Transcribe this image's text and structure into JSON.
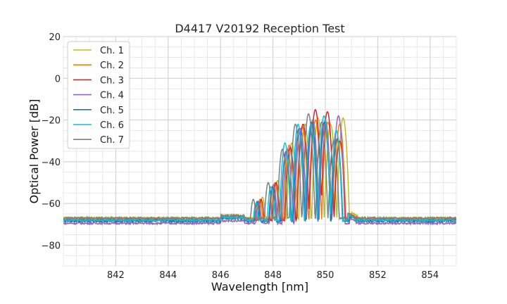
{
  "chart_data": {
    "type": "line",
    "title": "D4417 V20192 Reception Test",
    "xlabel": "Wavelength [nm]",
    "ylabel": "Optical Power [dB]",
    "xlim": [
      840,
      855
    ],
    "ylim": [
      -90,
      20
    ],
    "xticks": [
      842,
      844,
      846,
      848,
      850,
      852,
      854
    ],
    "xtick_labels": [
      "842",
      "844",
      "846",
      "848",
      "850",
      "852",
      "854"
    ],
    "yticks": [
      -80,
      -60,
      -40,
      -20,
      0,
      20
    ],
    "ytick_labels": [
      "−80",
      "−60",
      "−40",
      "−20",
      "0",
      "20"
    ],
    "grid": true,
    "minor_grid": true,
    "legend_position": "top-left",
    "series": [
      {
        "name": "Ch. 1",
        "color": "#bcbd22",
        "baseline": -67,
        "shift": 0.2,
        "peak": -19,
        "peaks": [
          [
            847.6,
            -57
          ],
          [
            848.18,
            -49
          ],
          [
            848.72,
            -31
          ],
          [
            849.22,
            -22
          ],
          [
            849.72,
            -19
          ],
          [
            850.2,
            -22
          ],
          [
            850.68,
            -19
          ]
        ]
      },
      {
        "name": "Ch. 2",
        "color": "#ff7f0e",
        "baseline": -67.5,
        "shift": 0.1,
        "peak": -20,
        "peaks": [
          [
            847.5,
            -58
          ],
          [
            848.08,
            -50
          ],
          [
            848.62,
            -32
          ],
          [
            849.12,
            -23
          ],
          [
            849.62,
            -20
          ],
          [
            850.1,
            -21
          ],
          [
            850.55,
            -22
          ]
        ]
      },
      {
        "name": "Ch. 3",
        "color": "#d62728",
        "baseline": -68,
        "shift": 0.05,
        "peak": -15,
        "peaks": [
          [
            847.55,
            -58
          ],
          [
            848.12,
            -50
          ],
          [
            848.66,
            -33
          ],
          [
            849.15,
            -22
          ],
          [
            849.62,
            -15
          ],
          [
            850.08,
            -16
          ],
          [
            850.55,
            -30
          ]
        ]
      },
      {
        "name": "Ch. 4",
        "color": "#9467bd",
        "baseline": -69.5,
        "shift": 0.0,
        "peak": -18,
        "peaks": [
          [
            847.45,
            -59
          ],
          [
            848.02,
            -51
          ],
          [
            848.56,
            -34
          ],
          [
            849.05,
            -24
          ],
          [
            849.52,
            -20
          ],
          [
            850.0,
            -20
          ],
          [
            850.5,
            -18
          ]
        ]
      },
      {
        "name": "Ch. 5",
        "color": "#1f77b4",
        "baseline": -68.5,
        "shift": -0.05,
        "peak": -21,
        "peaks": [
          [
            847.4,
            -59
          ],
          [
            847.98,
            -52
          ],
          [
            848.5,
            -35
          ],
          [
            849.0,
            -24
          ],
          [
            849.48,
            -21
          ],
          [
            849.96,
            -21
          ],
          [
            850.45,
            -29
          ]
        ]
      },
      {
        "name": "Ch. 6",
        "color": "#17becf",
        "baseline": -68,
        "shift": -0.1,
        "peak": -18,
        "peaks": [
          [
            847.35,
            -60
          ],
          [
            847.92,
            -52
          ],
          [
            848.46,
            -31
          ],
          [
            848.96,
            -22
          ],
          [
            849.45,
            -22
          ],
          [
            849.95,
            -18
          ],
          [
            850.42,
            -25
          ]
        ]
      },
      {
        "name": "Ch. 7",
        "color": "#7f7f7f",
        "baseline": -67,
        "shift": -0.2,
        "peak": -17,
        "peaks": [
          [
            847.25,
            -58
          ],
          [
            847.82,
            -50
          ],
          [
            848.36,
            -34
          ],
          [
            848.86,
            -22
          ],
          [
            849.36,
            -17
          ],
          [
            849.86,
            -21
          ],
          [
            850.32,
            -30
          ]
        ]
      }
    ]
  }
}
